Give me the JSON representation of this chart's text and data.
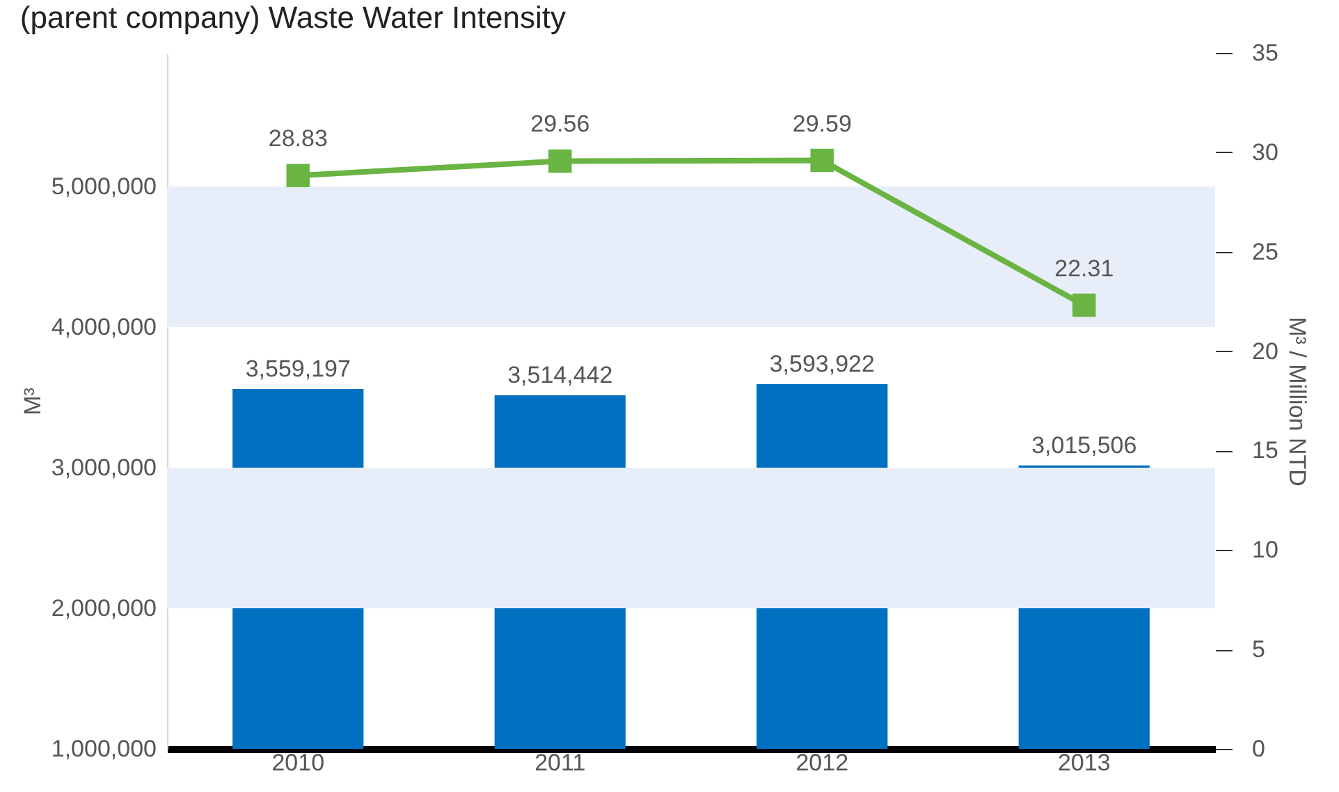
{
  "chart_data": {
    "type": "bar",
    "title": "(parent company) Waste Water Intensity",
    "ylabel": "M³",
    "y2label": "M³ / Million NTD",
    "categories": [
      "2010",
      "2011",
      "2012",
      "2013"
    ],
    "series": [
      {
        "color": "#0070c0",
        "values": [
          3559197,
          3514442,
          3593922,
          3015506
        ],
        "value_labels": [
          "3,559,197",
          "3,514,442",
          "3,593,922",
          "3,015,506"
        ]
      },
      {
        "type": "line",
        "axis": "y2",
        "color": "#6ab443",
        "values": [
          28.83,
          29.56,
          29.59,
          22.31
        ]
      }
    ],
    "data_labels": true,
    "marker": "square",
    "line_style": "solid",
    "grid": false,
    "ylim": [
      1000000,
      5950000
    ],
    "yticks": [
      {
        "value": 1000000,
        "label": "1,000,000"
      },
      {
        "value": 2000000,
        "label": "2,000,000"
      },
      {
        "value": 3000000,
        "label": "3,000,000"
      },
      {
        "value": 4000000,
        "label": "4,000,000"
      },
      {
        "value": 5000000,
        "label": "5,000,000"
      }
    ],
    "y2lim": [
      0,
      35
    ],
    "y2ticks": [
      0,
      5,
      10,
      15,
      20,
      25,
      30,
      35
    ],
    "bands": [
      {
        "axis": "y",
        "from": 4000000,
        "to": 5000000,
        "color": "#e8eef9"
      },
      {
        "axis": "y",
        "from": 2000000,
        "to": 3000000,
        "color": "#e8eef9"
      }
    ]
  }
}
